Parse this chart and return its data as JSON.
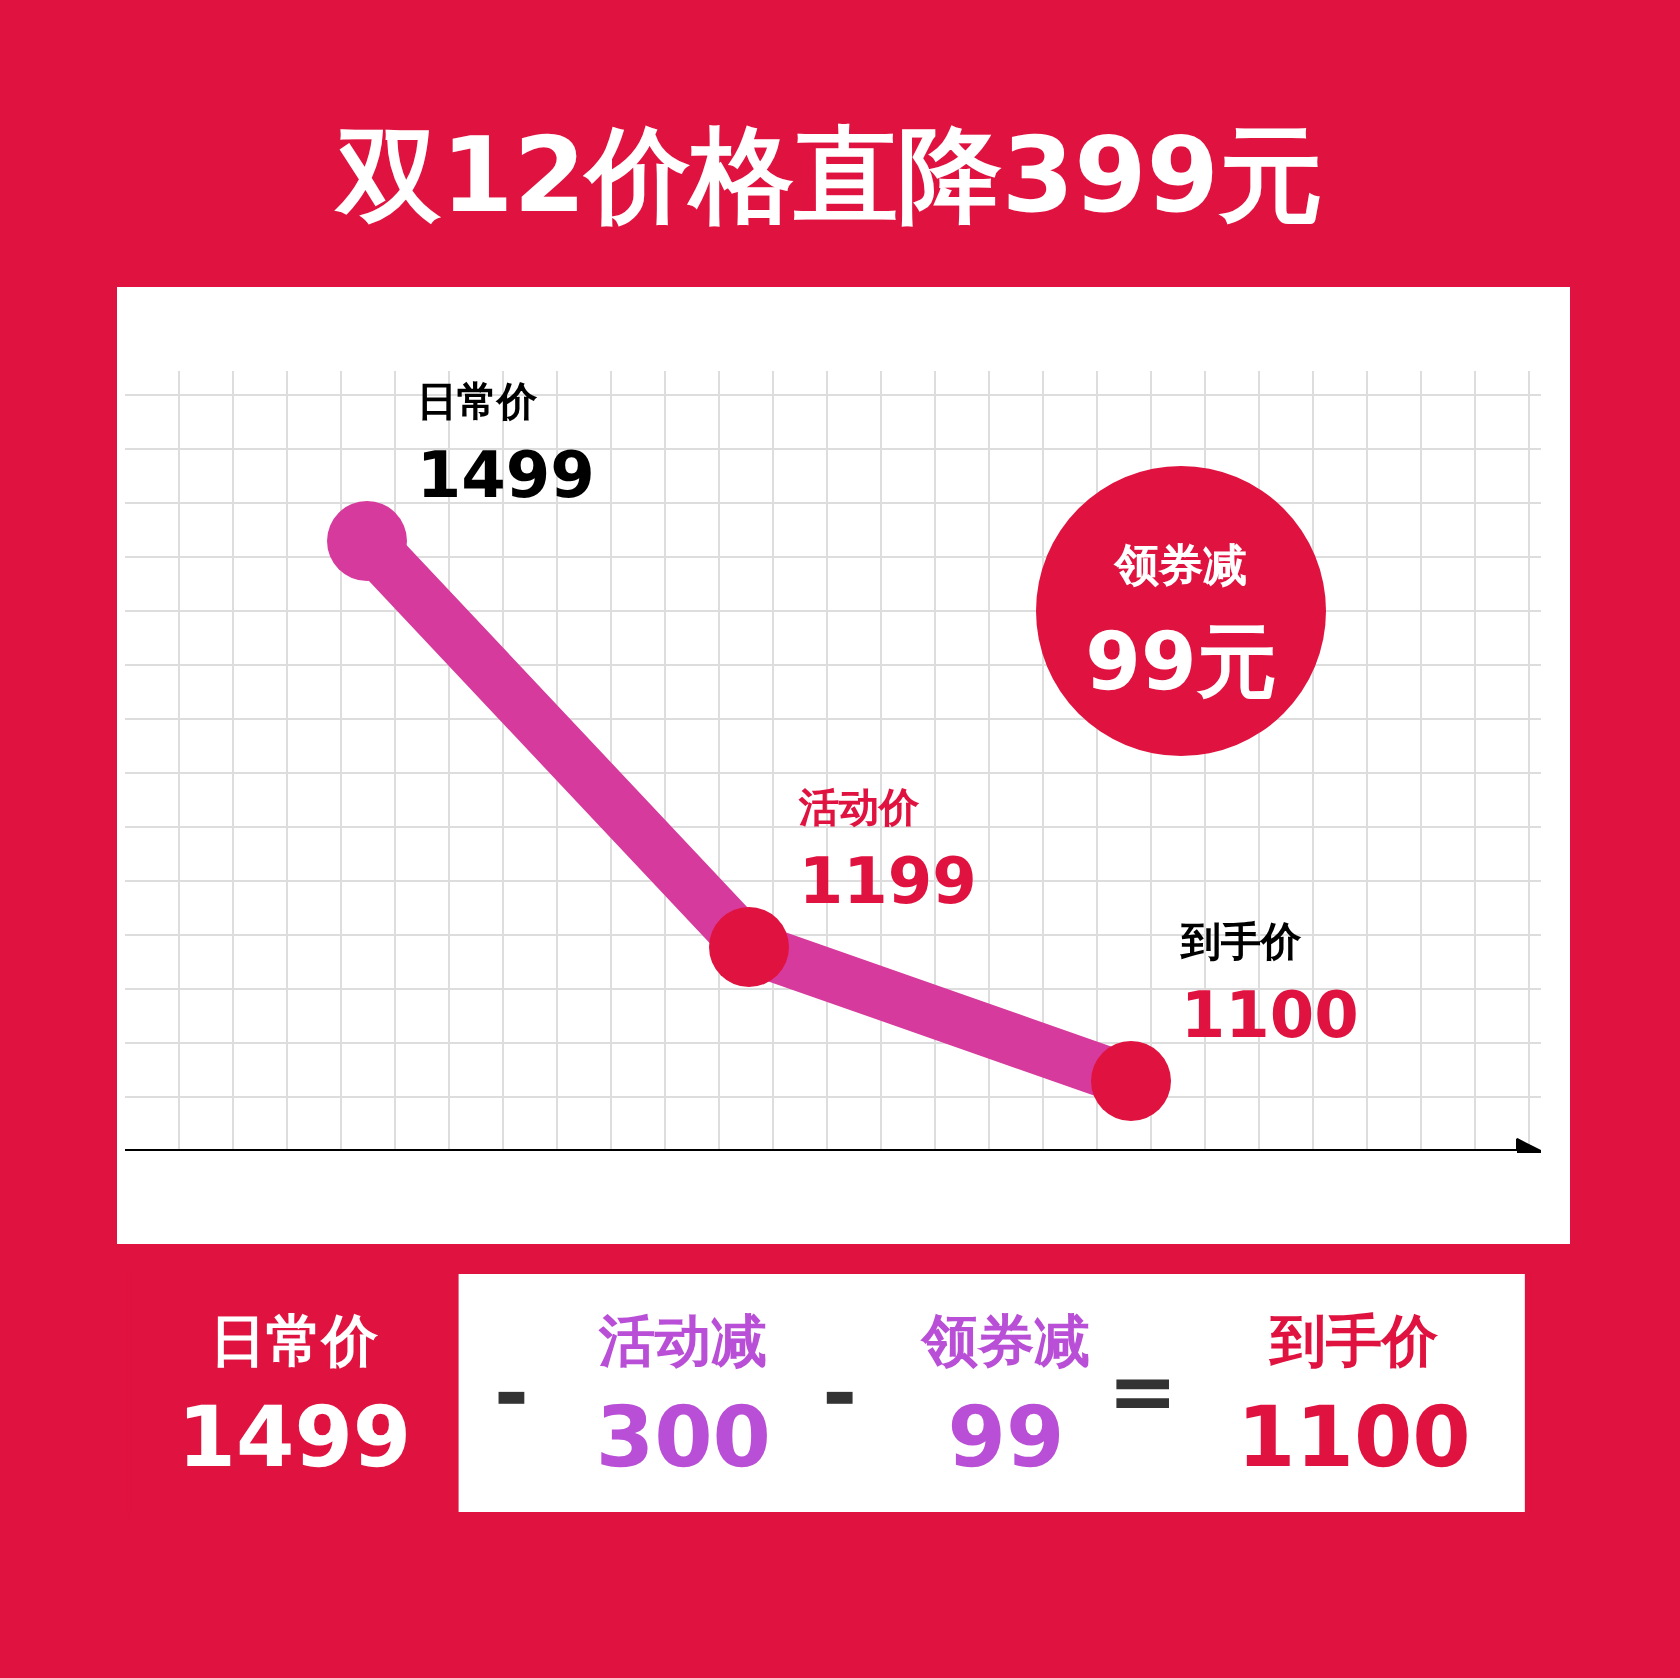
{
  "chart_data": {
    "type": "line",
    "title": "双12价格直降399元",
    "categories": [
      null,
      null,
      null
    ],
    "values": [
      1499,
      1199,
      1100
    ],
    "color": "#d63a9c",
    "colors": [
      "#d63a9c",
      "#e0123f",
      "#e0123f"
    ],
    "marker": "circle",
    "data_labels": true,
    "grid": true,
    "annotations": [
      "日常价",
      "活动价",
      "到手价",
      "领券减\n99元",
      "日常价\n1499",
      "-",
      "活动减\n300",
      "-",
      "领券减\n99",
      "=",
      "到手价\n1100"
    ]
  }
}
